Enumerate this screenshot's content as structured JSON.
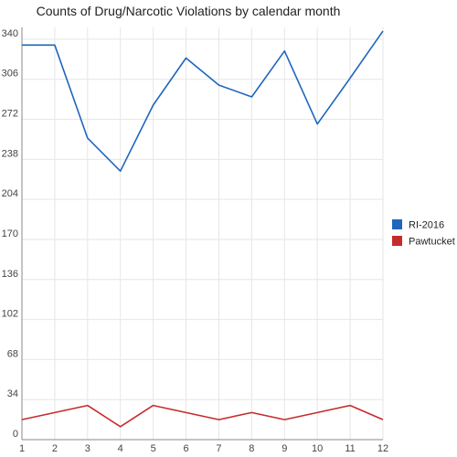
{
  "chart_data": {
    "type": "line",
    "title": "Counts of Drug/Narcotic Violations by calendar month",
    "xlabel": "",
    "ylabel": "",
    "x": [
      "1",
      "2",
      "3",
      "4",
      "5",
      "6",
      "7",
      "8",
      "9",
      "10",
      "11",
      "12"
    ],
    "yticks": [
      0,
      34,
      68,
      102,
      136,
      170,
      204,
      238,
      272,
      306,
      340
    ],
    "ylim": [
      0,
      350
    ],
    "grid": true,
    "legend_position": "right",
    "series": [
      {
        "name": "RI-2016",
        "color": "#1f66bd",
        "values": [
          335,
          335,
          256,
          228,
          284,
          324,
          301,
          291,
          330,
          268,
          307,
          347
        ]
      },
      {
        "name": "Pawtucket",
        "color": "#c62b2b",
        "values": [
          17,
          23,
          29,
          11,
          29,
          23,
          17,
          23,
          17,
          23,
          29,
          17
        ]
      }
    ]
  }
}
